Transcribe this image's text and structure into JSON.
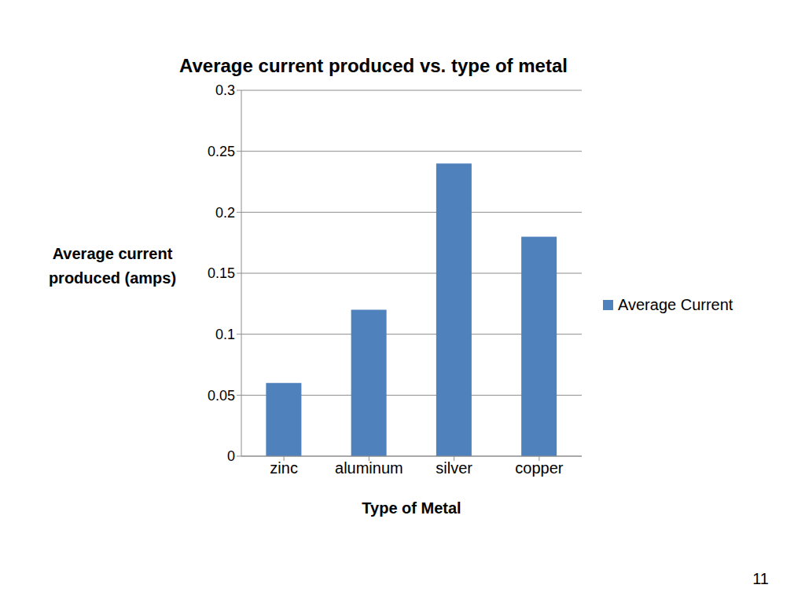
{
  "chart_data": {
    "type": "bar",
    "title": "Average current produced vs. type of metal",
    "x_label": "Type of Metal",
    "y_label": "Average current produced (amps)",
    "categories": [
      "zinc",
      "aluminum",
      "silver",
      "copper"
    ],
    "series": [
      {
        "name": "Average Current",
        "color": "#4f81bd",
        "values": [
          0.06,
          0.12,
          0.24,
          0.18
        ]
      }
    ],
    "ylim": [
      0,
      0.3
    ],
    "yticks": [
      0,
      0.05,
      0.1,
      0.15,
      0.2,
      0.25,
      0.3
    ],
    "grid": true,
    "legend": "right"
  },
  "slide_number": 11
}
